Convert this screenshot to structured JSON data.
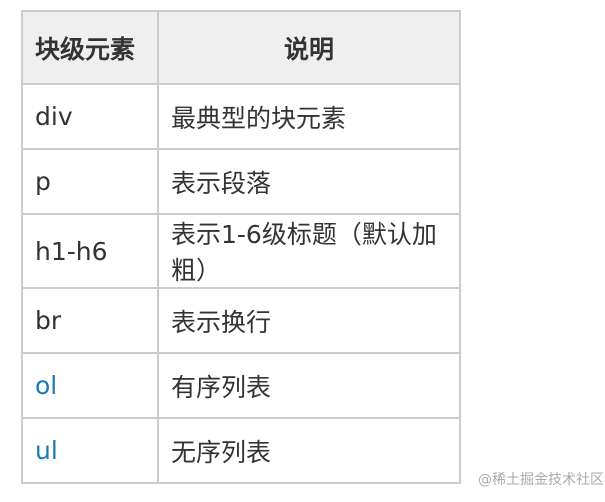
{
  "table": {
    "headers": [
      "块级元素",
      "说明"
    ],
    "rows": [
      {
        "element": "div",
        "desc": "最典型的块元素",
        "link": false
      },
      {
        "element": "p",
        "desc": "表示段落",
        "link": false
      },
      {
        "element": "h1-h6",
        "desc": "表示1-6级标题（默认加粗）",
        "link": false
      },
      {
        "element": "br",
        "desc": "表示换行",
        "link": false
      },
      {
        "element": "ol",
        "desc": "有序列表",
        "link": true
      },
      {
        "element": "ul",
        "desc": "无序列表",
        "link": true
      }
    ],
    "link_color": "#1a7ab8"
  },
  "watermark": "@稀土掘金技术社区"
}
